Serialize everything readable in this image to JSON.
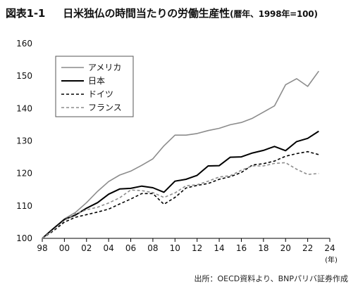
{
  "figure": {
    "label": "図表1-1",
    "title": "日米独仏の時間当たりの労働生産性",
    "subtitle": "(暦年、1998年=100)",
    "source": "出所：OECD資料より、BNPパリバ証券作成"
  },
  "chart_data": {
    "type": "line",
    "title": "日米独仏の時間当たりの労働生産性",
    "subtitle": "(暦年、1998年=100)",
    "xlabel": "(年)",
    "ylabel": "",
    "xlim": [
      1998,
      2024
    ],
    "ylim": [
      100,
      160
    ],
    "yticks": [
      100,
      110,
      120,
      130,
      140,
      150,
      160
    ],
    "xticks": [
      1998,
      2000,
      2002,
      2004,
      2006,
      2008,
      2010,
      2012,
      2014,
      2016,
      2018,
      2020,
      2022,
      2024
    ],
    "xtick_labels": [
      "98",
      "00",
      "02",
      "04",
      "06",
      "08",
      "10",
      "12",
      "14",
      "16",
      "18",
      "20",
      "22",
      "24"
    ],
    "grid": false,
    "legend_position": "top-left",
    "x": [
      1998,
      1999,
      2000,
      2001,
      2002,
      2003,
      2004,
      2005,
      2006,
      2007,
      2008,
      2009,
      2010,
      2011,
      2012,
      2013,
      2014,
      2015,
      2016,
      2017,
      2018,
      2019,
      2020,
      2021,
      2022,
      2023
    ],
    "series": [
      {
        "name": "アメリカ",
        "color": "#8c8c8c",
        "dash": "solid",
        "width": 1.6,
        "values": [
          100,
          103.0,
          106.0,
          108.0,
          111.0,
          114.5,
          117.5,
          119.5,
          120.7,
          122.5,
          124.5,
          128.5,
          131.8,
          131.8,
          132.3,
          133.2,
          133.9,
          135.0,
          135.7,
          137.0,
          138.9,
          140.8,
          147.3,
          149.2,
          146.8,
          151.5
        ]
      },
      {
        "name": "日本",
        "color": "#000000",
        "dash": "solid",
        "width": 2.0,
        "values": [
          100,
          103.0,
          105.8,
          107.2,
          109.3,
          111.0,
          113.6,
          115.2,
          115.4,
          116.1,
          115.6,
          114.2,
          117.6,
          118.2,
          119.4,
          122.3,
          122.4,
          125.0,
          125.1,
          126.3,
          127.1,
          128.3,
          127.0,
          129.8,
          130.8,
          133.0
        ]
      },
      {
        "name": "ドイツ",
        "color": "#000000",
        "dash": "short",
        "width": 1.6,
        "values": [
          100,
          102.3,
          105.0,
          106.5,
          107.3,
          108.1,
          109.0,
          110.6,
          112.1,
          113.8,
          113.8,
          110.5,
          112.6,
          115.5,
          116.3,
          116.9,
          118.2,
          119.0,
          120.3,
          122.6,
          123.0,
          123.8,
          125.3,
          126.1,
          126.7,
          125.8
        ]
      },
      {
        "name": "フランス",
        "color": "#8c8c8c",
        "dash": "short",
        "width": 1.6,
        "values": [
          100,
          102.6,
          105.5,
          107.6,
          108.8,
          109.6,
          110.9,
          112.5,
          114.9,
          114.7,
          114.1,
          112.6,
          114.0,
          116.2,
          116.5,
          117.6,
          118.9,
          119.3,
          121.0,
          122.3,
          122.3,
          123.1,
          123.3,
          121.3,
          119.7,
          120.0
        ]
      }
    ]
  }
}
